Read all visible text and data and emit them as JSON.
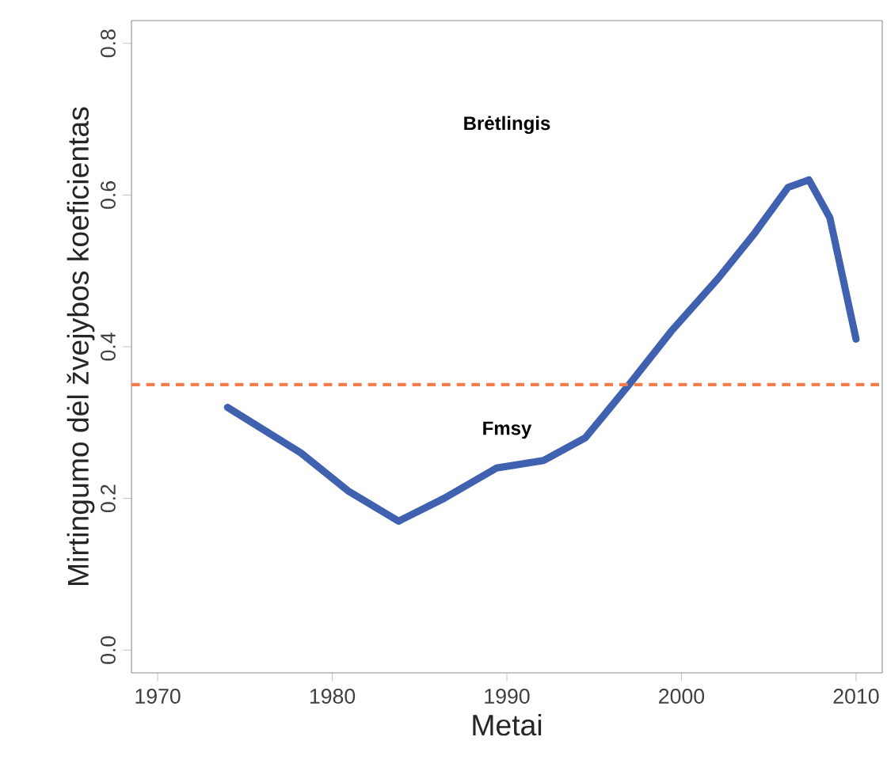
{
  "chart_data": {
    "type": "line",
    "xlabel": "Metai",
    "ylabel": "Mirtingumo dėl žvejybos koeficientas",
    "x": [
      1974,
      1978.2,
      1980.9,
      1983.8,
      1986.4,
      1989.4,
      1992.1,
      1994.5,
      1997,
      1999.4,
      2002.1,
      2004.2,
      2006.1,
      2007.3,
      2008.5,
      2010
    ],
    "series": [
      {
        "color": "#4060b0",
        "values": [
          0.32,
          0.26,
          0.21,
          0.17,
          0.2,
          0.24,
          0.25,
          0.28,
          0.35,
          0.42,
          0.49,
          0.55,
          0.61,
          0.62,
          0.57,
          0.41
        ]
      }
    ],
    "xlim": [
      1968.5,
      2011.5
    ],
    "ylim": [
      -0.03,
      0.83
    ],
    "xticks": [
      1970,
      1980,
      1990,
      2000,
      2010
    ],
    "yticks": [
      {
        "value": 0,
        "label": "0.0"
      },
      {
        "value": 0.2,
        "label": "0.2"
      },
      {
        "value": 0.4,
        "label": "0.4"
      },
      {
        "value": 0.6,
        "label": "0.6"
      },
      {
        "value": 0.8,
        "label": "0.8"
      }
    ],
    "ref_lines": [
      {
        "axis": "y",
        "value": 0.35,
        "label": "Fmsy",
        "color": "#f07f50",
        "line_style": "dashed"
      }
    ],
    "annotations": [
      "Brėtlingis"
    ],
    "marker": "none",
    "line_style": "solid",
    "grid": false
  }
}
